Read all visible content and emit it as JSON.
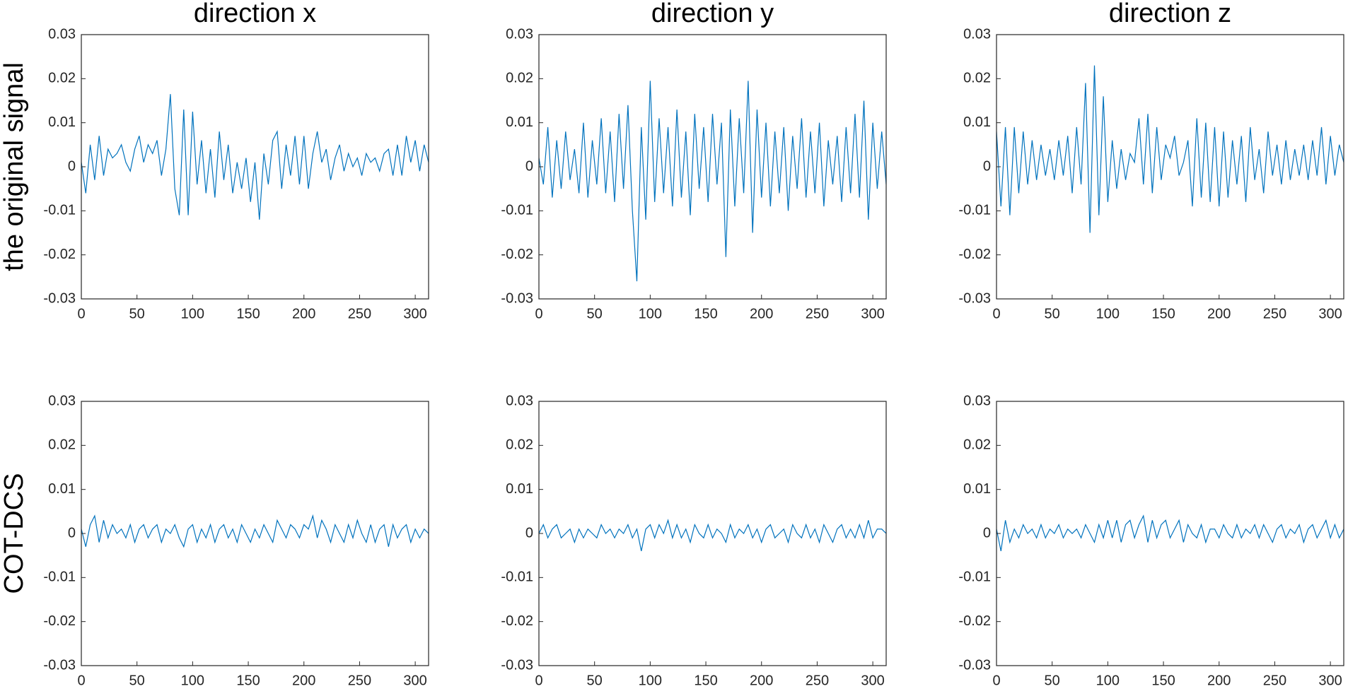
{
  "chart_data": [
    {
      "type": "line",
      "title": "direction x",
      "ylabel": "the original signal",
      "color": "#0072bd",
      "xlim": [
        0,
        312
      ],
      "ylim": [
        -0.03,
        0.03
      ],
      "xticks": [
        0,
        50,
        100,
        150,
        200,
        250,
        300
      ],
      "yticks": [
        -0.03,
        -0.02,
        -0.01,
        0,
        0.01,
        0.02,
        0.03
      ],
      "x": [
        0,
        4,
        8,
        12,
        16,
        20,
        24,
        28,
        32,
        36,
        40,
        44,
        48,
        52,
        56,
        60,
        64,
        68,
        72,
        76,
        80,
        84,
        88,
        92,
        96,
        100,
        104,
        108,
        112,
        116,
        120,
        124,
        128,
        132,
        136,
        140,
        144,
        148,
        152,
        156,
        160,
        164,
        168,
        172,
        176,
        180,
        184,
        188,
        192,
        196,
        200,
        204,
        208,
        212,
        216,
        220,
        224,
        228,
        232,
        236,
        240,
        244,
        248,
        252,
        256,
        260,
        264,
        268,
        272,
        276,
        280,
        284,
        288,
        292,
        296,
        300,
        304,
        308,
        312
      ],
      "values": [
        0.001,
        -0.006,
        0.005,
        -0.003,
        0.007,
        -0.002,
        0.004,
        0.002,
        0.003,
        0.005,
        0.001,
        -0.001,
        0.004,
        0.007,
        0.001,
        0.005,
        0.003,
        0.006,
        -0.002,
        0.004,
        0.0165,
        -0.005,
        -0.011,
        0.013,
        -0.011,
        0.0125,
        -0.004,
        0.006,
        -0.006,
        0.004,
        -0.007,
        0.008,
        -0.003,
        0.005,
        -0.006,
        0.001,
        -0.005,
        0.002,
        -0.008,
        0.001,
        -0.012,
        0.003,
        -0.004,
        0.006,
        0.008,
        -0.005,
        0.005,
        -0.002,
        0.007,
        -0.004,
        0.007,
        -0.005,
        0.003,
        0.008,
        0.001,
        0.004,
        -0.003,
        0.002,
        0.005,
        -0.001,
        0.003,
        0,
        0.002,
        -0.002,
        0.003,
        0.001,
        0.002,
        -0.001,
        0.003,
        0.004,
        -0.002,
        0.005,
        -0.002,
        0.007,
        0.001,
        0.006,
        -0.001,
        0.005,
        0.001
      ]
    },
    {
      "type": "line",
      "title": "direction y",
      "color": "#0072bd",
      "xlim": [
        0,
        312
      ],
      "ylim": [
        -0.03,
        0.03
      ],
      "xticks": [
        0,
        50,
        100,
        150,
        200,
        250,
        300
      ],
      "yticks": [
        -0.03,
        -0.02,
        -0.01,
        0,
        0.01,
        0.02,
        0.03
      ],
      "x": [
        0,
        4,
        8,
        12,
        16,
        20,
        24,
        28,
        32,
        36,
        40,
        44,
        48,
        52,
        56,
        60,
        64,
        68,
        72,
        76,
        80,
        84,
        88,
        92,
        96,
        100,
        104,
        108,
        112,
        116,
        120,
        124,
        128,
        132,
        136,
        140,
        144,
        148,
        152,
        156,
        160,
        164,
        168,
        172,
        176,
        180,
        184,
        188,
        192,
        196,
        200,
        204,
        208,
        212,
        216,
        220,
        224,
        228,
        232,
        236,
        240,
        244,
        248,
        252,
        256,
        260,
        264,
        268,
        272,
        276,
        280,
        284,
        288,
        292,
        296,
        300,
        304,
        308,
        312
      ],
      "values": [
        0.002,
        -0.004,
        0.009,
        -0.007,
        0.006,
        -0.005,
        0.008,
        -0.003,
        0.004,
        -0.006,
        0.01,
        -0.007,
        0.006,
        -0.004,
        0.011,
        -0.006,
        0.008,
        -0.008,
        0.012,
        -0.005,
        0.014,
        -0.01,
        -0.026,
        0.009,
        -0.012,
        0.0195,
        -0.008,
        0.011,
        -0.006,
        0.009,
        -0.009,
        0.013,
        -0.007,
        0.008,
        -0.011,
        0.012,
        -0.005,
        0.009,
        -0.008,
        0.012,
        -0.004,
        0.01,
        -0.0205,
        0.013,
        -0.009,
        0.011,
        -0.006,
        0.0195,
        -0.015,
        0.013,
        -0.007,
        0.01,
        -0.009,
        0.008,
        -0.006,
        0.009,
        -0.01,
        0.007,
        -0.005,
        0.011,
        -0.007,
        0.008,
        -0.006,
        0.01,
        -0.009,
        0.006,
        -0.004,
        0.007,
        -0.008,
        0.009,
        -0.006,
        0.012,
        -0.007,
        0.015,
        -0.012,
        0.01,
        -0.005,
        0.008,
        -0.004
      ]
    },
    {
      "type": "line",
      "title": "direction z",
      "color": "#0072bd",
      "xlim": [
        0,
        312
      ],
      "ylim": [
        -0.03,
        0.03
      ],
      "xticks": [
        0,
        50,
        100,
        150,
        200,
        250,
        300
      ],
      "yticks": [
        -0.03,
        -0.02,
        -0.01,
        0,
        0.01,
        0.02,
        0.03
      ],
      "x": [
        0,
        4,
        8,
        12,
        16,
        20,
        24,
        28,
        32,
        36,
        40,
        44,
        48,
        52,
        56,
        60,
        64,
        68,
        72,
        76,
        80,
        84,
        88,
        92,
        96,
        100,
        104,
        108,
        112,
        116,
        120,
        124,
        128,
        132,
        136,
        140,
        144,
        148,
        152,
        156,
        160,
        164,
        168,
        172,
        176,
        180,
        184,
        188,
        192,
        196,
        200,
        204,
        208,
        212,
        216,
        220,
        224,
        228,
        232,
        236,
        240,
        244,
        248,
        252,
        256,
        260,
        264,
        268,
        272,
        276,
        280,
        284,
        288,
        292,
        296,
        300,
        304,
        308,
        312
      ],
      "values": [
        0.008,
        -0.009,
        0.009,
        -0.011,
        0.009,
        -0.006,
        0.008,
        -0.004,
        0.006,
        -0.003,
        0.005,
        -0.002,
        0.004,
        -0.003,
        0.006,
        -0.002,
        0.007,
        -0.006,
        0.009,
        -0.004,
        0.019,
        -0.015,
        0.023,
        -0.011,
        0.016,
        -0.008,
        0.006,
        -0.005,
        0.004,
        -0.003,
        0.003,
        0.001,
        0.011,
        -0.004,
        0.012,
        -0.006,
        0.009,
        -0.003,
        0.005,
        0.002,
        0.007,
        -0.002,
        0.001,
        0.006,
        -0.009,
        0.011,
        -0.007,
        0.01,
        -0.008,
        0.009,
        -0.009,
        0.008,
        -0.007,
        0.006,
        -0.004,
        0.007,
        -0.008,
        0.009,
        -0.003,
        0.004,
        -0.006,
        0.008,
        -0.002,
        0.005,
        -0.004,
        0.006,
        -0.003,
        0.004,
        -0.002,
        0.005,
        -0.003,
        0.006,
        -0.002,
        0.009,
        -0.004,
        0.007,
        -0.002,
        0.005,
        0.001
      ]
    },
    {
      "type": "line",
      "ylabel": "COT-DCS",
      "color": "#0072bd",
      "xlim": [
        0,
        312
      ],
      "ylim": [
        -0.03,
        0.03
      ],
      "xticks": [
        0,
        50,
        100,
        150,
        200,
        250,
        300
      ],
      "yticks": [
        -0.03,
        -0.02,
        -0.01,
        0,
        0.01,
        0.02,
        0.03
      ],
      "x": [
        0,
        4,
        8,
        12,
        16,
        20,
        24,
        28,
        32,
        36,
        40,
        44,
        48,
        52,
        56,
        60,
        64,
        68,
        72,
        76,
        80,
        84,
        88,
        92,
        96,
        100,
        104,
        108,
        112,
        116,
        120,
        124,
        128,
        132,
        136,
        140,
        144,
        148,
        152,
        156,
        160,
        164,
        168,
        172,
        176,
        180,
        184,
        188,
        192,
        196,
        200,
        204,
        208,
        212,
        216,
        220,
        224,
        228,
        232,
        236,
        240,
        244,
        248,
        252,
        256,
        260,
        264,
        268,
        272,
        276,
        280,
        284,
        288,
        292,
        296,
        300,
        304,
        308,
        312
      ],
      "values": [
        0.001,
        -0.003,
        0.002,
        0.004,
        -0.002,
        0.003,
        -0.001,
        0.002,
        0,
        0.001,
        -0.001,
        0.002,
        -0.002,
        0.001,
        0.002,
        -0.001,
        0.001,
        0.002,
        -0.002,
        0.001,
        0,
        0.002,
        -0.001,
        -0.003,
        0.001,
        0.002,
        -0.002,
        0.001,
        -0.001,
        0.002,
        -0.002,
        0.001,
        0.002,
        -0.001,
        0.001,
        -0.002,
        0.002,
        0,
        -0.002,
        0.001,
        -0.001,
        0.002,
        0,
        -0.002,
        0.003,
        0.001,
        -0.001,
        0.002,
        0.001,
        -0.001,
        0.002,
        0.001,
        0.004,
        -0.001,
        0.003,
        0.001,
        -0.002,
        0.002,
        0,
        -0.002,
        0.002,
        -0.001,
        0.003,
        0,
        -0.002,
        0.002,
        -0.002,
        0.001,
        0.002,
        -0.003,
        0.002,
        -0.001,
        0.001,
        0.002,
        -0.002,
        0.001,
        -0.001,
        0.001,
        0
      ]
    },
    {
      "type": "line",
      "color": "#0072bd",
      "xlim": [
        0,
        312
      ],
      "ylim": [
        -0.03,
        0.03
      ],
      "xticks": [
        0,
        50,
        100,
        150,
        200,
        250,
        300
      ],
      "yticks": [
        -0.03,
        -0.02,
        -0.01,
        0,
        0.01,
        0.02,
        0.03
      ],
      "x": [
        0,
        4,
        8,
        12,
        16,
        20,
        24,
        28,
        32,
        36,
        40,
        44,
        48,
        52,
        56,
        60,
        64,
        68,
        72,
        76,
        80,
        84,
        88,
        92,
        96,
        100,
        104,
        108,
        112,
        116,
        120,
        124,
        128,
        132,
        136,
        140,
        144,
        148,
        152,
        156,
        160,
        164,
        168,
        172,
        176,
        180,
        184,
        188,
        192,
        196,
        200,
        204,
        208,
        212,
        216,
        220,
        224,
        228,
        232,
        236,
        240,
        244,
        248,
        252,
        256,
        260,
        264,
        268,
        272,
        276,
        280,
        284,
        288,
        292,
        296,
        300,
        304,
        308,
        312
      ],
      "values": [
        0,
        0.002,
        -0.001,
        0.001,
        0.002,
        -0.001,
        0,
        0.001,
        -0.002,
        0.001,
        -0.001,
        0.001,
        0,
        -0.001,
        0.002,
        0,
        0.001,
        -0.001,
        0.001,
        0,
        0.002,
        -0.001,
        0.001,
        -0.004,
        0.001,
        0.002,
        -0.001,
        0.002,
        0,
        0.003,
        -0.001,
        0.002,
        -0.001,
        0.001,
        -0.002,
        0.002,
        0,
        -0.001,
        0.002,
        -0.001,
        0.001,
        0,
        -0.002,
        0.002,
        -0.001,
        0.001,
        0,
        0.002,
        -0.001,
        0.001,
        -0.002,
        0.001,
        0.002,
        -0.001,
        0,
        0.001,
        -0.002,
        0.002,
        0,
        -0.001,
        0.002,
        -0.001,
        0.001,
        -0.002,
        0.002,
        0,
        -0.002,
        0.001,
        0.002,
        -0.001,
        0.001,
        -0.001,
        0.002,
        -0.001,
        0.003,
        -0.001,
        0.001,
        0.001,
        0
      ]
    },
    {
      "type": "line",
      "color": "#0072bd",
      "xlim": [
        0,
        312
      ],
      "ylim": [
        -0.03,
        0.03
      ],
      "xticks": [
        0,
        50,
        100,
        150,
        200,
        250,
        300
      ],
      "yticks": [
        -0.03,
        -0.02,
        -0.01,
        0,
        0.01,
        0.02,
        0.03
      ],
      "x": [
        0,
        4,
        8,
        12,
        16,
        20,
        24,
        28,
        32,
        36,
        40,
        44,
        48,
        52,
        56,
        60,
        64,
        68,
        72,
        76,
        80,
        84,
        88,
        92,
        96,
        100,
        104,
        108,
        112,
        116,
        120,
        124,
        128,
        132,
        136,
        140,
        144,
        148,
        152,
        156,
        160,
        164,
        168,
        172,
        176,
        180,
        184,
        188,
        192,
        196,
        200,
        204,
        208,
        212,
        216,
        220,
        224,
        228,
        232,
        236,
        240,
        244,
        248,
        252,
        256,
        260,
        264,
        268,
        272,
        276,
        280,
        284,
        288,
        292,
        296,
        300,
        304,
        308,
        312
      ],
      "values": [
        0.001,
        -0.004,
        0.003,
        -0.002,
        0.001,
        -0.001,
        0.002,
        0,
        0.001,
        -0.001,
        0.002,
        -0.001,
        0.001,
        0,
        0.002,
        -0.001,
        0.001,
        0,
        0.001,
        -0.001,
        0.002,
        0,
        -0.002,
        0.002,
        -0.001,
        0.003,
        -0.001,
        0.003,
        -0.002,
        0.002,
        0.003,
        -0.001,
        0.002,
        0.004,
        -0.002,
        0.003,
        -0.001,
        0.002,
        0.003,
        -0.001,
        0.001,
        0.003,
        -0.002,
        0.002,
        0,
        -0.001,
        0.002,
        -0.002,
        0.001,
        0.001,
        -0.001,
        0.002,
        0,
        -0.001,
        0.002,
        -0.001,
        0.001,
        0,
        0.002,
        -0.001,
        0.002,
        0,
        -0.002,
        0.001,
        0.002,
        -0.001,
        0.001,
        0,
        0.002,
        -0.002,
        0.001,
        0.002,
        -0.001,
        0.001,
        0.003,
        -0.001,
        0.002,
        -0.001,
        0.001
      ]
    }
  ]
}
